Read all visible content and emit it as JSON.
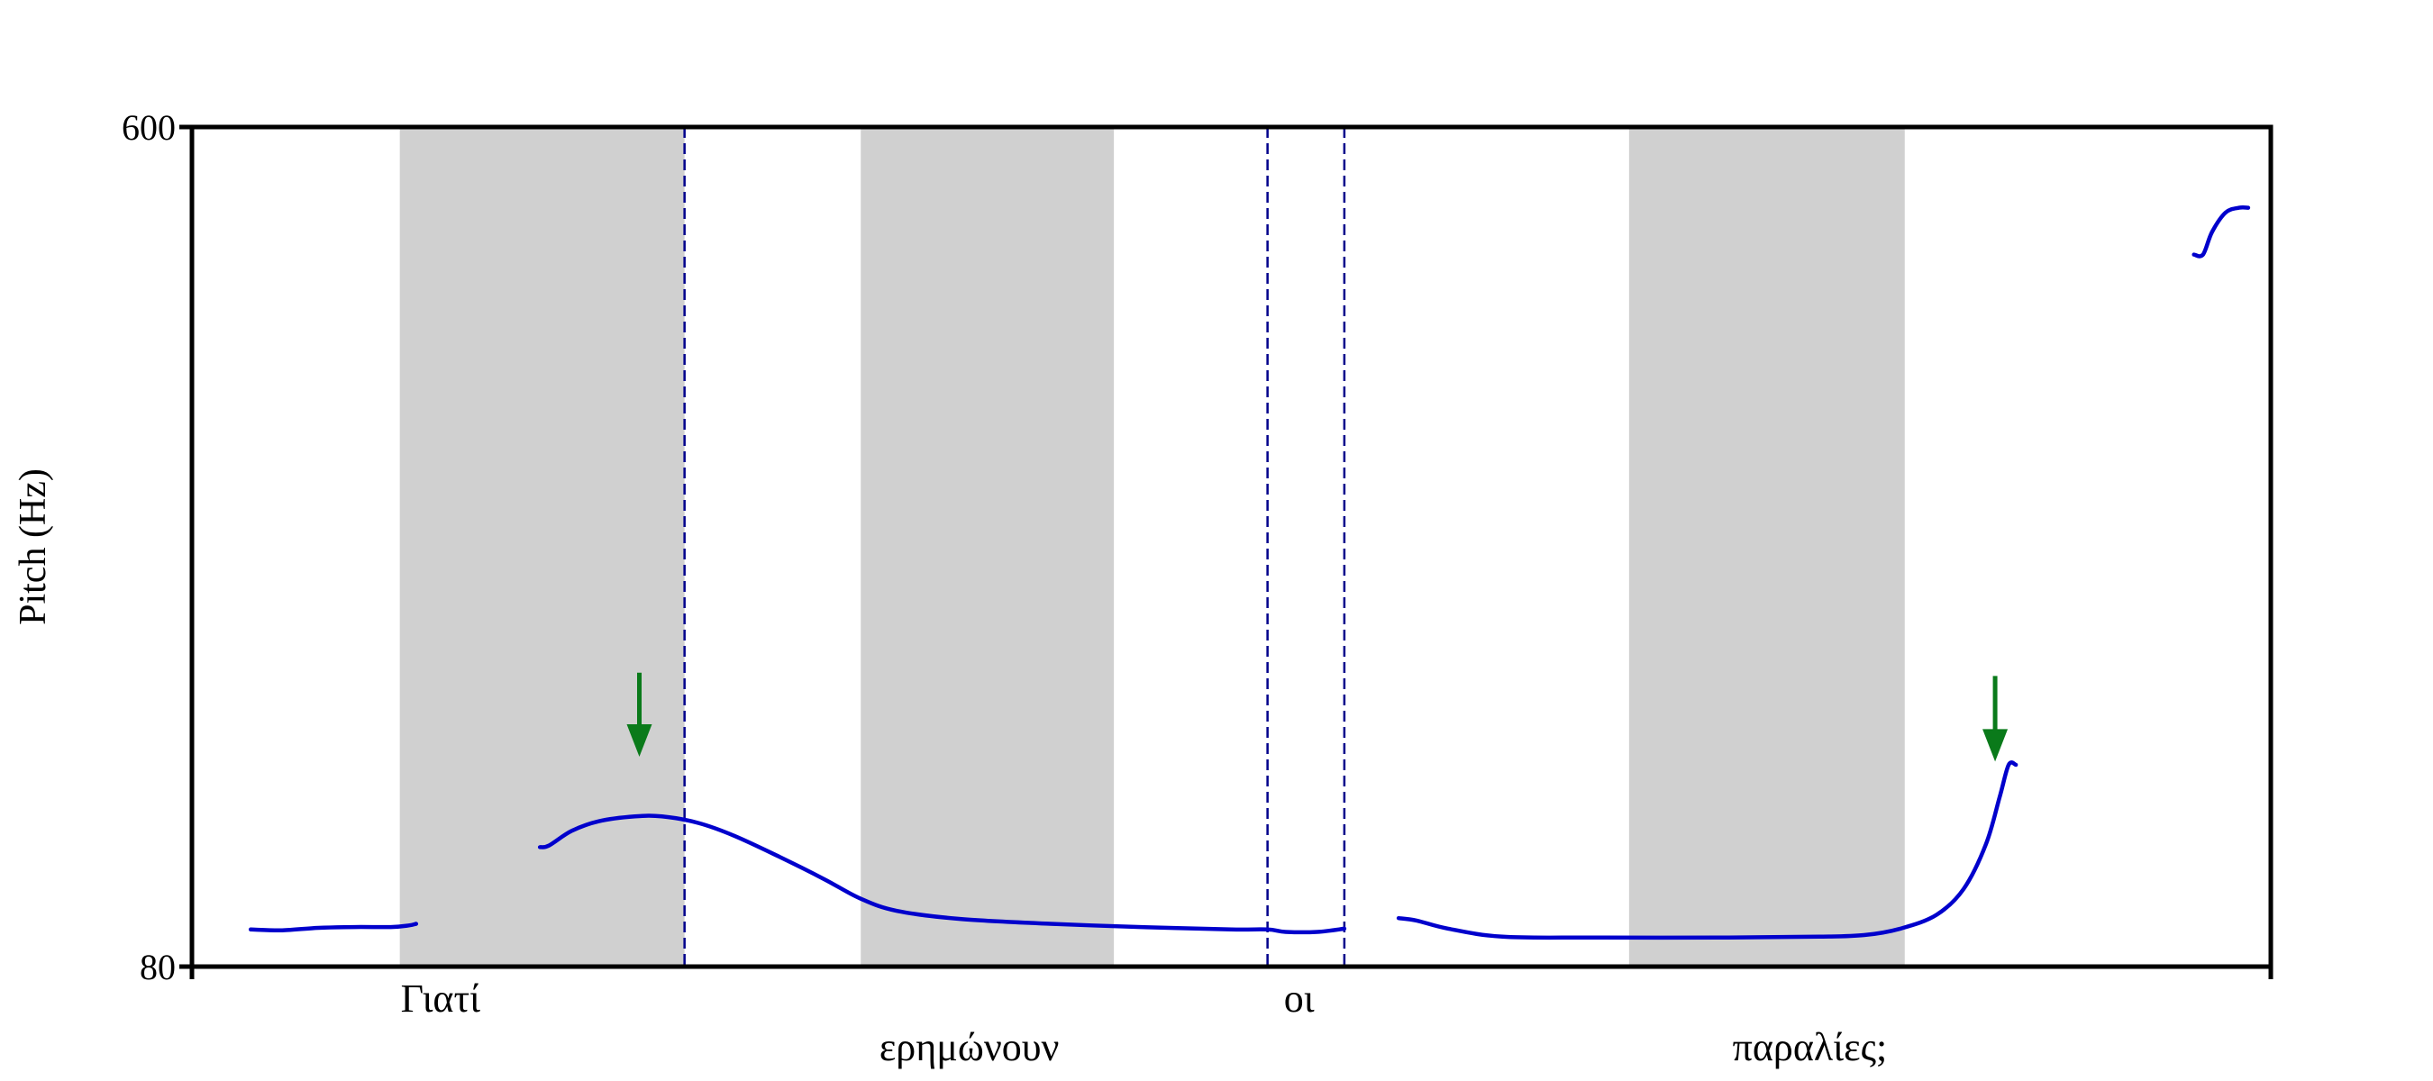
{
  "chart_data": {
    "type": "line",
    "title": "",
    "xlabel": "",
    "ylabel": "Pitch (Hz)",
    "ylim": [
      80,
      600
    ],
    "y_ticks": [
      "600",
      "80"
    ],
    "xlim": [
      0,
      2.3
    ],
    "grid": false,
    "legend": "none",
    "colors": {
      "pitch": "#0000cc",
      "boundary": "#00008b",
      "shade": "#d0d0d0",
      "arrow": "#0a7a1a"
    },
    "shaded_regions": [
      [
        0.23,
        0.545
      ],
      [
        0.74,
        1.02
      ],
      [
        1.59,
        1.895
      ]
    ],
    "boundaries": [
      0.545,
      1.19,
      1.275
    ],
    "words": [
      {
        "text": "Γιατί",
        "x": 0.275,
        "row": 1
      },
      {
        "text": "ερημώνουν",
        "x": 0.86,
        "row": 2
      },
      {
        "text": "οι",
        "x": 1.225,
        "row": 1
      },
      {
        "text": "παραλίες;",
        "x": 1.79,
        "row": 2
      }
    ],
    "arrows": [
      {
        "x": 0.495,
        "y_from": 262,
        "y_to": 210
      },
      {
        "x": 1.995,
        "y_from": 260,
        "y_to": 207
      }
    ],
    "series": [
      {
        "points": [
          [
            0.065,
            103
          ],
          [
            0.1,
            102.5
          ],
          [
            0.14,
            104
          ],
          [
            0.18,
            104.5
          ],
          [
            0.22,
            104.5
          ],
          [
            0.24,
            105.5
          ],
          [
            0.248,
            106.5
          ]
        ]
      },
      {
        "points": [
          [
            0.385,
            154
          ],
          [
            0.395,
            155
          ],
          [
            0.42,
            164
          ],
          [
            0.45,
            170
          ],
          [
            0.49,
            173
          ],
          [
            0.52,
            173
          ],
          [
            0.56,
            169
          ],
          [
            0.6,
            161
          ],
          [
            0.65,
            148
          ],
          [
            0.7,
            134
          ],
          [
            0.74,
            122
          ],
          [
            0.78,
            114.5
          ],
          [
            0.85,
            109.5
          ],
          [
            0.95,
            106.5
          ],
          [
            1.05,
            104.5
          ],
          [
            1.15,
            103
          ],
          [
            1.19,
            103
          ],
          [
            1.21,
            101.5
          ],
          [
            1.245,
            101.5
          ],
          [
            1.275,
            103.5
          ]
        ]
      },
      {
        "points": [
          [
            1.335,
            110
          ],
          [
            1.355,
            108.5
          ],
          [
            1.39,
            103.5
          ],
          [
            1.45,
            98.5
          ],
          [
            1.55,
            98
          ],
          [
            1.7,
            98
          ],
          [
            1.8,
            98.5
          ],
          [
            1.85,
            99.5
          ],
          [
            1.89,
            103.5
          ],
          [
            1.93,
            112
          ],
          [
            1.96,
            128
          ],
          [
            1.985,
            156
          ],
          [
            2.0,
            185
          ],
          [
            2.01,
            205
          ],
          [
            2.018,
            205
          ]
        ]
      },
      {
        "points": [
          [
            2.215,
            521
          ],
          [
            2.225,
            521
          ],
          [
            2.235,
            535
          ],
          [
            2.25,
            547
          ],
          [
            2.265,
            550
          ],
          [
            2.275,
            550
          ]
        ]
      }
    ]
  }
}
